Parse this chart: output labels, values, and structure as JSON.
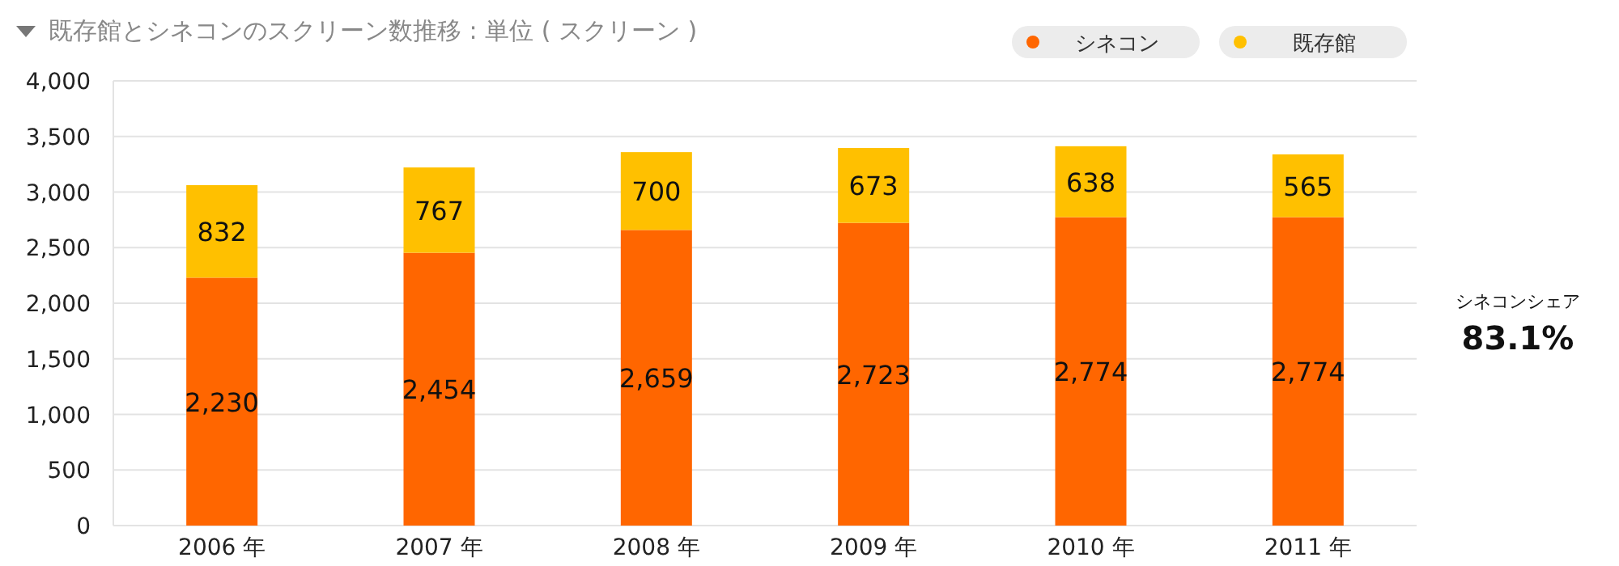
{
  "chart_data": {
    "type": "bar",
    "stacked": true,
    "title": "既存館とシネコンのスクリーン数推移 : 単位 ( スクリーン )",
    "categories": [
      "2006 年",
      "2007 年",
      "2008 年",
      "2009 年",
      "2010 年",
      "2011 年"
    ],
    "series": [
      {
        "name": "シネコン",
        "color": "#ff6600",
        "values": [
          2230,
          2454,
          2659,
          2723,
          2774,
          2774
        ],
        "value_labels": [
          "2,230",
          "2,454",
          "2,659",
          "2,723",
          "2,774",
          "2,774"
        ]
      },
      {
        "name": "既存館",
        "color": "#ffc000",
        "values": [
          832,
          767,
          700,
          673,
          638,
          565
        ],
        "value_labels": [
          "832",
          "767",
          "700",
          "673",
          "638",
          "565"
        ]
      }
    ],
    "ylim": [
      0,
      4000
    ],
    "yticks": [
      {
        "value": 0,
        "label": "0"
      },
      {
        "value": 500,
        "label": "500"
      },
      {
        "value": 1000,
        "label": "1,000"
      },
      {
        "value": 1500,
        "label": "1,500"
      },
      {
        "value": 2000,
        "label": "2,000"
      },
      {
        "value": 2500,
        "label": "2,500"
      },
      {
        "value": 3000,
        "label": "3,000"
      },
      {
        "value": 3500,
        "label": "3,500"
      },
      {
        "value": 4000,
        "label": "4,000"
      }
    ],
    "grid": "y",
    "legend": "top right",
    "annotations": [
      "シネコンシェア",
      "83.1%"
    ]
  }
}
